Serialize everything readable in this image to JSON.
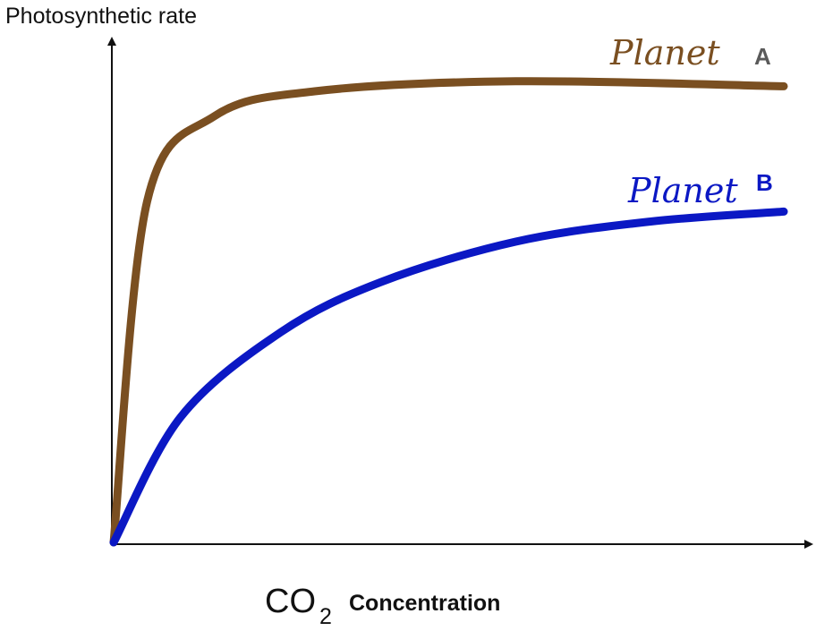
{
  "chart_data": {
    "type": "line",
    "ylabel": "Photosynthetic rate",
    "xlabel": {
      "prefix": "CO",
      "subscript": "2",
      "suffix": "Concentration"
    },
    "axes": {
      "ticks": "none",
      "grid": false,
      "arrows": true
    },
    "xlim": [
      0,
      1
    ],
    "ylim": [
      0,
      1
    ],
    "series": [
      {
        "name": "Planet",
        "letter": "A",
        "color": "#7a4f21",
        "shape": "saturating",
        "values": [
          [
            0,
            0
          ],
          [
            0.05,
            0.68
          ],
          [
            0.15,
            0.85
          ],
          [
            0.3,
            0.9
          ],
          [
            0.6,
            0.92
          ],
          [
            1,
            0.91
          ]
        ]
      },
      {
        "name": "Planet",
        "letter": "B",
        "color": "#0b18c4",
        "shape": "saturating",
        "values": [
          [
            0,
            0
          ],
          [
            0.1,
            0.25
          ],
          [
            0.25,
            0.42
          ],
          [
            0.4,
            0.52
          ],
          [
            0.6,
            0.6
          ],
          [
            0.8,
            0.64
          ],
          [
            1,
            0.66
          ]
        ]
      }
    ],
    "label_color": "#5a5a5a"
  }
}
